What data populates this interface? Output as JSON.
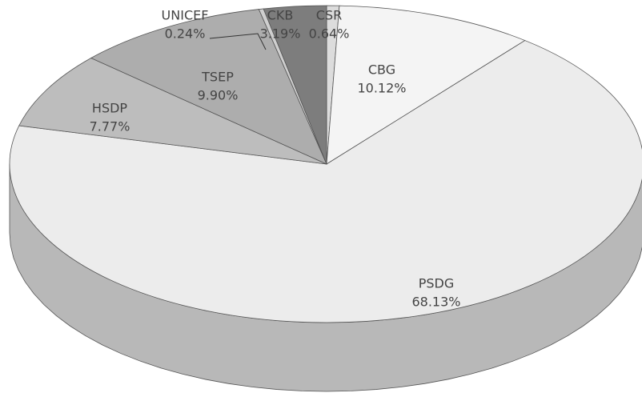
{
  "chart_data": {
    "type": "pie3d",
    "categories": [
      "CSR",
      "CBG",
      "PSDG",
      "HSDP",
      "TSEP",
      "UNICEF",
      "CKB"
    ],
    "values": [
      0.64,
      10.12,
      68.13,
      7.77,
      9.9,
      0.24,
      3.19
    ],
    "value_labels": [
      "0.64%",
      "10.12%",
      "68.13%",
      "7.77%",
      "9.90%",
      "0.24%",
      "3.19%"
    ],
    "colors": [
      "#dcdcdc",
      "#f4f4f4",
      "#ececec",
      "#bdbdbd",
      "#adadad",
      "#cfcfcf",
      "#7d7d7d"
    ]
  }
}
